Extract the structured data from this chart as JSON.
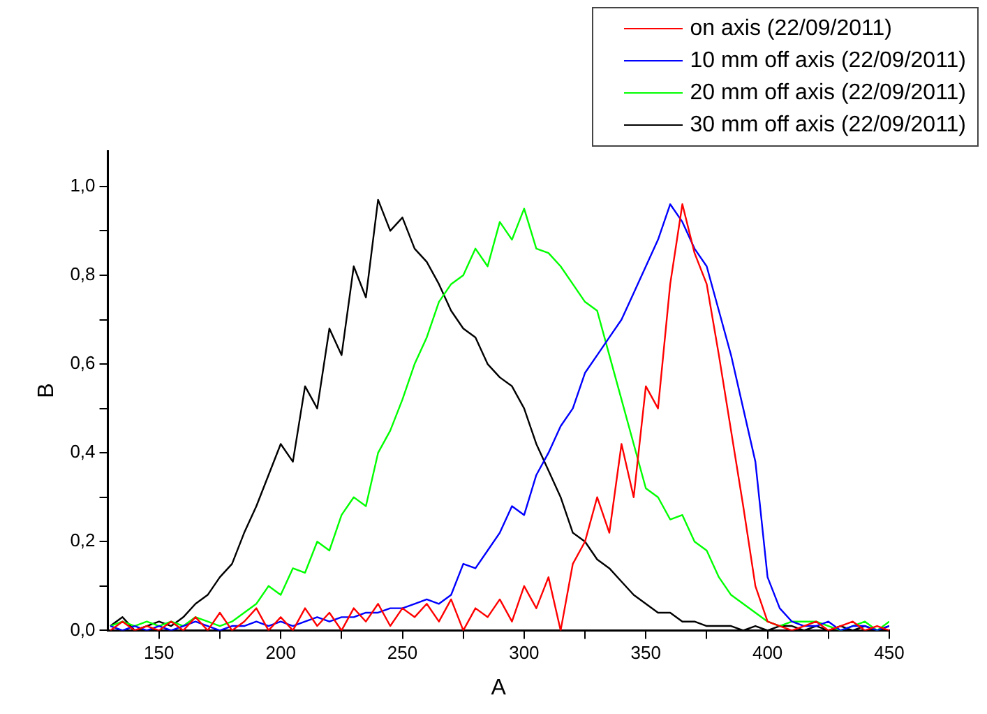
{
  "chart_data": {
    "type": "line",
    "xlabel": "A",
    "ylabel": "B",
    "x": [
      130,
      135,
      140,
      145,
      150,
      155,
      160,
      165,
      170,
      175,
      180,
      185,
      190,
      195,
      200,
      205,
      210,
      215,
      220,
      225,
      230,
      235,
      240,
      245,
      250,
      255,
      260,
      265,
      270,
      275,
      280,
      285,
      290,
      295,
      300,
      305,
      310,
      315,
      320,
      325,
      330,
      335,
      340,
      345,
      350,
      355,
      360,
      365,
      370,
      375,
      380,
      385,
      390,
      395,
      400,
      405,
      410,
      415,
      420,
      425,
      430,
      435,
      440,
      445,
      450
    ],
    "series": [
      {
        "name": "on axis (22/09/2011)",
        "color": "#ff0000",
        "values": [
          0.0,
          0.02,
          0.0,
          0.01,
          0.0,
          0.02,
          0.0,
          0.03,
          0.0,
          0.04,
          0.0,
          0.02,
          0.05,
          0.0,
          0.03,
          0.0,
          0.05,
          0.01,
          0.04,
          0.0,
          0.05,
          0.02,
          0.06,
          0.01,
          0.05,
          0.03,
          0.06,
          0.02,
          0.07,
          0.0,
          0.05,
          0.03,
          0.07,
          0.02,
          0.1,
          0.05,
          0.12,
          0.0,
          0.15,
          0.2,
          0.3,
          0.22,
          0.42,
          0.3,
          0.55,
          0.5,
          0.78,
          0.96,
          0.85,
          0.78,
          0.62,
          0.45,
          0.28,
          0.1,
          0.02,
          0.01,
          0.0,
          0.01,
          0.02,
          0.0,
          0.01,
          0.02,
          0.0,
          0.01,
          0.0
        ]
      },
      {
        "name": "10 mm off axis (22/09/2011)",
        "color": "#0000ff",
        "values": [
          0.01,
          0.0,
          0.01,
          0.0,
          0.01,
          0.0,
          0.01,
          0.02,
          0.01,
          0.0,
          0.01,
          0.01,
          0.02,
          0.01,
          0.02,
          0.01,
          0.02,
          0.03,
          0.02,
          0.03,
          0.03,
          0.04,
          0.04,
          0.05,
          0.05,
          0.06,
          0.07,
          0.06,
          0.08,
          0.15,
          0.14,
          0.18,
          0.22,
          0.28,
          0.26,
          0.35,
          0.4,
          0.46,
          0.5,
          0.58,
          0.62,
          0.66,
          0.7,
          0.76,
          0.82,
          0.88,
          0.96,
          0.92,
          0.86,
          0.82,
          0.72,
          0.62,
          0.5,
          0.38,
          0.12,
          0.05,
          0.02,
          0.01,
          0.01,
          0.02,
          0.0,
          0.01,
          0.01,
          0.0,
          0.01
        ]
      },
      {
        "name": "20 mm off axis (22/09/2011)",
        "color": "#00ff00",
        "values": [
          0.01,
          0.02,
          0.01,
          0.02,
          0.01,
          0.02,
          0.01,
          0.03,
          0.02,
          0.01,
          0.02,
          0.04,
          0.06,
          0.1,
          0.08,
          0.14,
          0.13,
          0.2,
          0.18,
          0.26,
          0.3,
          0.28,
          0.4,
          0.45,
          0.52,
          0.6,
          0.66,
          0.74,
          0.78,
          0.8,
          0.86,
          0.82,
          0.92,
          0.88,
          0.95,
          0.86,
          0.85,
          0.82,
          0.78,
          0.74,
          0.72,
          0.62,
          0.52,
          0.42,
          0.32,
          0.3,
          0.25,
          0.26,
          0.2,
          0.18,
          0.12,
          0.08,
          0.06,
          0.04,
          0.02,
          0.01,
          0.02,
          0.02,
          0.02,
          0.01,
          0.0,
          0.01,
          0.02,
          0.0,
          0.02
        ]
      },
      {
        "name": "30 mm off axis (22/09/2011)",
        "color": "#000000",
        "values": [
          0.01,
          0.03,
          0.0,
          0.01,
          0.02,
          0.01,
          0.03,
          0.06,
          0.08,
          0.12,
          0.15,
          0.22,
          0.28,
          0.35,
          0.42,
          0.38,
          0.55,
          0.5,
          0.68,
          0.62,
          0.82,
          0.75,
          0.97,
          0.9,
          0.93,
          0.86,
          0.83,
          0.78,
          0.72,
          0.68,
          0.66,
          0.6,
          0.57,
          0.55,
          0.5,
          0.42,
          0.36,
          0.3,
          0.22,
          0.2,
          0.16,
          0.14,
          0.11,
          0.08,
          0.06,
          0.04,
          0.04,
          0.02,
          0.02,
          0.01,
          0.01,
          0.01,
          0.0,
          0.01,
          0.0,
          0.01,
          0.01,
          0.0,
          0.01,
          0.0,
          0.01,
          0.0,
          0.01,
          0.0,
          0.01
        ]
      }
    ],
    "xlim": [
      129,
      450
    ],
    "xticks": [
      150,
      {
        "value": 175,
        "label": null
      },
      200,
      {
        "value": 225,
        "label": null
      },
      250,
      {
        "value": 275,
        "label": null
      },
      300,
      {
        "value": 325,
        "label": null
      },
      350,
      {
        "value": 375,
        "label": null
      },
      400,
      {
        "value": 425,
        "label": null
      },
      450
    ],
    "ylim": [
      0,
      1.08
    ],
    "yticks": [
      {
        "value": 0,
        "label": "0,0"
      },
      {
        "value": 0.1,
        "label": null
      },
      {
        "value": 0.2,
        "label": "0,2"
      },
      {
        "value": 0.3,
        "label": null
      },
      {
        "value": 0.4,
        "label": "0,4"
      },
      {
        "value": 0.5,
        "label": null
      },
      {
        "value": 0.6,
        "label": "0,6"
      },
      {
        "value": 0.7,
        "label": null
      },
      {
        "value": 0.8,
        "label": "0,8"
      },
      {
        "value": 0.9,
        "label": null
      },
      {
        "value": 1.0,
        "label": "1,0"
      }
    ],
    "grid": false,
    "legend": "top right",
    "marker": "none",
    "line_style": "solid"
  }
}
